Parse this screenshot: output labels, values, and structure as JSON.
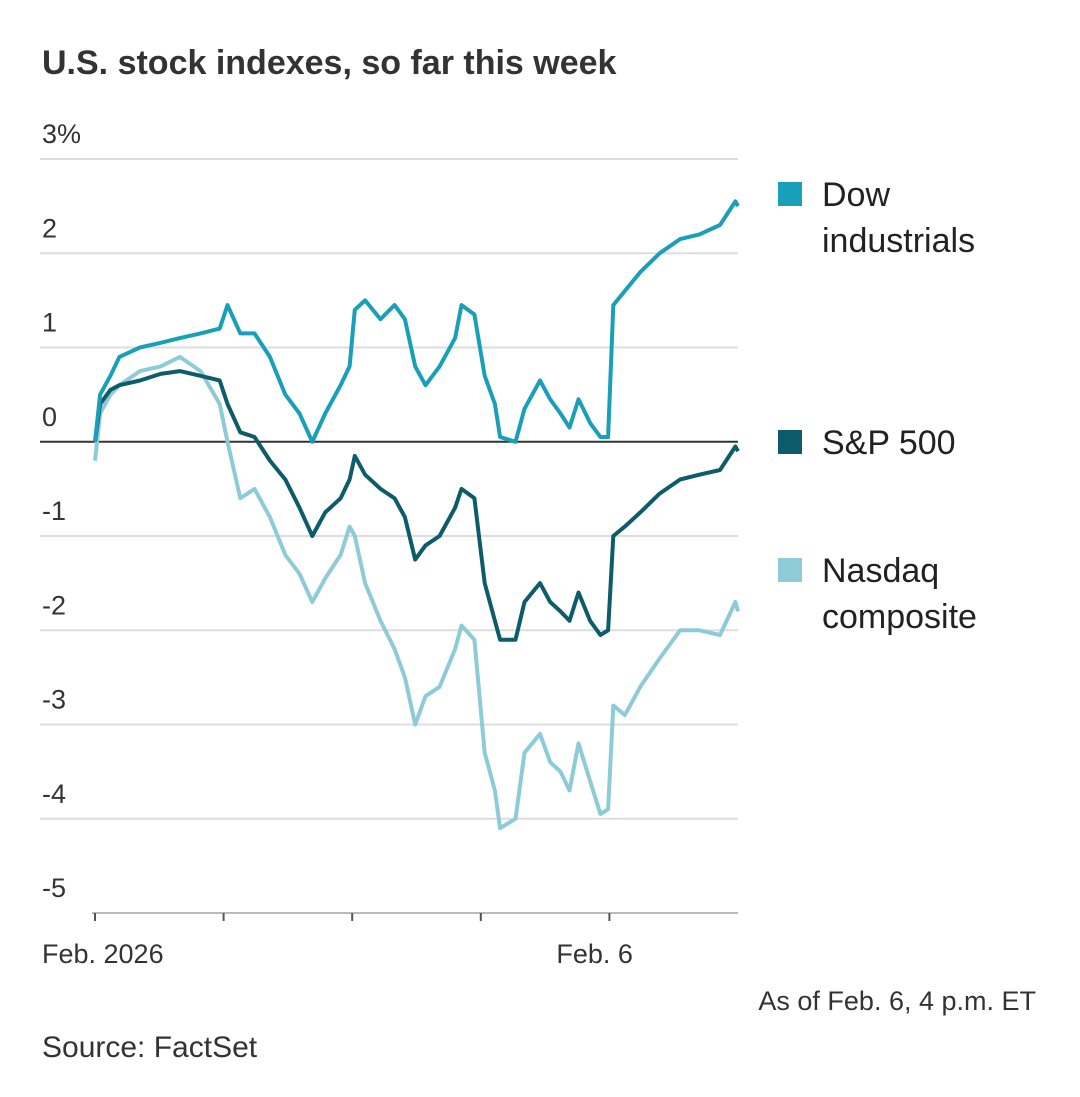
{
  "chart_data": {
    "type": "line",
    "title": "U.S. stock indexes, so far this week",
    "note": "As of Feb. 6, 4 p.m. ET",
    "source": "Source: FactSet",
    "x": [
      0,
      0.04,
      0.12,
      0.19,
      0.35,
      0.51,
      0.66,
      0.82,
      0.97,
      1.03,
      1.13,
      1.24,
      1.36,
      1.48,
      1.59,
      1.69,
      1.79,
      1.91,
      1.98,
      2.02,
      2.1,
      2.22,
      2.33,
      2.41,
      2.49,
      2.57,
      2.68,
      2.8,
      2.85,
      2.95,
      3.03,
      3.11,
      3.15,
      3.27,
      3.34,
      3.46,
      3.54,
      3.62,
      3.69,
      3.76,
      3.85,
      3.93,
      3.99,
      4.03,
      4.12,
      4.24,
      4.39,
      4.55,
      4.7,
      4.86,
      4.98,
      5.0
    ],
    "xlim": [
      0,
      5
    ],
    "xticks": [
      {
        "value": 0,
        "label": "Feb. 2026"
      },
      {
        "value": 1,
        "label": null
      },
      {
        "value": 2,
        "label": null
      },
      {
        "value": 3,
        "label": null
      },
      {
        "value": 4,
        "label": "Feb. 6"
      }
    ],
    "ylim": [
      -5,
      3
    ],
    "yticks": [
      {
        "value": 3,
        "label": "3%"
      },
      2,
      1,
      0,
      -1,
      -2,
      -3,
      -4,
      -5
    ],
    "grid": true,
    "series": [
      {
        "name": "Dow industrials",
        "color": "#1a9fba",
        "values": [
          0,
          0.5,
          0.7,
          0.9,
          1.0,
          1.05,
          1.1,
          1.15,
          1.2,
          1.45,
          1.15,
          1.15,
          0.9,
          0.5,
          0.3,
          0.0,
          0.3,
          0.6,
          0.8,
          1.4,
          1.5,
          1.3,
          1.45,
          1.3,
          0.8,
          0.6,
          0.8,
          1.1,
          1.45,
          1.35,
          0.7,
          0.4,
          0.05,
          0.0,
          0.35,
          0.65,
          0.45,
          0.3,
          0.15,
          0.45,
          0.2,
          0.05,
          0.05,
          1.45,
          1.6,
          1.8,
          2.0,
          2.15,
          2.2,
          2.3,
          2.55,
          2.5
        ]
      },
      {
        "name": "S&P 500",
        "color": "#0d5c6b",
        "values": [
          0,
          0.4,
          0.55,
          0.6,
          0.65,
          0.72,
          0.75,
          0.7,
          0.65,
          0.4,
          0.1,
          0.05,
          -0.2,
          -0.4,
          -0.7,
          -1.0,
          -0.75,
          -0.6,
          -0.4,
          -0.15,
          -0.35,
          -0.5,
          -0.6,
          -0.8,
          -1.25,
          -1.1,
          -1.0,
          -0.7,
          -0.5,
          -0.6,
          -1.5,
          -1.9,
          -2.1,
          -2.1,
          -1.7,
          -1.5,
          -1.7,
          -1.8,
          -1.9,
          -1.6,
          -1.9,
          -2.05,
          -2.0,
          -1.0,
          -0.9,
          -0.75,
          -0.55,
          -0.4,
          -0.35,
          -0.3,
          -0.05,
          -0.1
        ]
      },
      {
        "name": "Nasdaq composite",
        "color": "#8ecbd8",
        "values": [
          -0.2,
          0.3,
          0.5,
          0.6,
          0.75,
          0.8,
          0.9,
          0.75,
          0.4,
          0.0,
          -0.6,
          -0.5,
          -0.8,
          -1.2,
          -1.4,
          -1.7,
          -1.45,
          -1.2,
          -0.9,
          -1.0,
          -1.5,
          -1.9,
          -2.2,
          -2.5,
          -3.0,
          -2.7,
          -2.6,
          -2.2,
          -1.95,
          -2.1,
          -3.3,
          -3.7,
          -4.1,
          -4.0,
          -3.3,
          -3.1,
          -3.4,
          -3.5,
          -3.7,
          -3.2,
          -3.6,
          -3.95,
          -3.9,
          -2.8,
          -2.9,
          -2.6,
          -2.3,
          -2.0,
          -2.0,
          -2.05,
          -1.7,
          -1.8
        ]
      }
    ]
  }
}
